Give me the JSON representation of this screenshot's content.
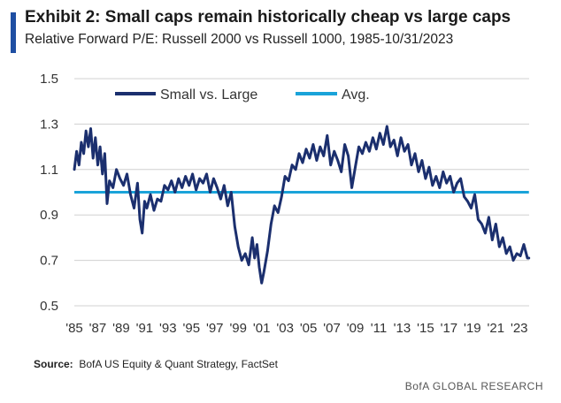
{
  "header": {
    "title": "Exhibit 2: Small caps remain historically cheap vs large caps",
    "subtitle": "Relative Forward P/E: Russell 2000 vs Russell 1000, 1985-10/31/2023"
  },
  "footer": {
    "source_label": "Source:",
    "source_text": "BofA US Equity & Quant Strategy, FactSet",
    "brand": "BofA GLOBAL RESEARCH"
  },
  "colors": {
    "series": "#1b2f6e",
    "avg": "#1aa3d9",
    "grid": "#d0d0d0",
    "accent": "#1f4fa3"
  },
  "chart_data": {
    "type": "line",
    "title": "Exhibit 2: Small caps remain historically cheap vs large caps",
    "subtitle": "Relative Forward P/E: Russell 2000 vs Russell 1000, 1985-10/31/2023",
    "xlabel": "",
    "ylabel": "",
    "xlim": [
      1985,
      2023.85
    ],
    "ylim": [
      0.5,
      1.5
    ],
    "yticks": [
      0.5,
      0.7,
      0.9,
      1.1,
      1.3,
      1.5
    ],
    "ytick_labels": [
      "0.5",
      "0.7",
      "0.9",
      "1.1",
      "1.3",
      "1.5"
    ],
    "xticks": [
      1985,
      1987,
      1989,
      1991,
      1993,
      1995,
      1997,
      1999,
      2001,
      2003,
      2005,
      2007,
      2009,
      2011,
      2013,
      2015,
      2017,
      2019,
      2021,
      2023
    ],
    "xtick_labels": [
      "'85",
      "'87",
      "'89",
      "'91",
      "'93",
      "'95",
      "'97",
      "'99",
      "'01",
      "'03",
      "'05",
      "'07",
      "'09",
      "'11",
      "'13",
      "'15",
      "'17",
      "'19",
      "'21",
      "'23"
    ],
    "grid": "horizontal",
    "legend_position": "top-left",
    "series": [
      {
        "name": "Small vs. Large",
        "x": [
          1985.0,
          1985.2,
          1985.4,
          1985.6,
          1985.8,
          1986.0,
          1986.2,
          1986.4,
          1986.6,
          1986.8,
          1987.0,
          1987.2,
          1987.4,
          1987.6,
          1987.8,
          1988.0,
          1988.3,
          1988.6,
          1988.9,
          1989.2,
          1989.5,
          1989.8,
          1990.1,
          1990.4,
          1990.6,
          1990.8,
          1991.0,
          1991.2,
          1991.5,
          1991.8,
          1992.1,
          1992.4,
          1992.7,
          1993.0,
          1993.3,
          1993.6,
          1993.9,
          1994.2,
          1994.5,
          1994.8,
          1995.1,
          1995.4,
          1995.7,
          1996.0,
          1996.3,
          1996.6,
          1996.9,
          1997.2,
          1997.5,
          1997.8,
          1998.1,
          1998.4,
          1998.7,
          1999.0,
          1999.3,
          1999.6,
          1999.9,
          2000.2,
          2000.4,
          2000.6,
          2000.8,
          2001.0,
          2001.2,
          2001.5,
          2001.8,
          2002.1,
          2002.4,
          2002.7,
          2003.0,
          2003.3,
          2003.6,
          2003.9,
          2004.2,
          2004.5,
          2004.8,
          2005.1,
          2005.4,
          2005.7,
          2006.0,
          2006.3,
          2006.6,
          2006.9,
          2007.2,
          2007.5,
          2007.8,
          2008.1,
          2008.4,
          2008.7,
          2009.0,
          2009.3,
          2009.6,
          2009.9,
          2010.2,
          2010.5,
          2010.8,
          2011.1,
          2011.4,
          2011.7,
          2012.0,
          2012.3,
          2012.6,
          2012.9,
          2013.2,
          2013.5,
          2013.8,
          2014.1,
          2014.4,
          2014.7,
          2015.0,
          2015.3,
          2015.6,
          2015.9,
          2016.2,
          2016.5,
          2016.8,
          2017.1,
          2017.4,
          2017.7,
          2018.0,
          2018.3,
          2018.6,
          2018.9,
          2019.2,
          2019.5,
          2019.8,
          2020.1,
          2020.4,
          2020.7,
          2021.0,
          2021.3,
          2021.6,
          2021.9,
          2022.2,
          2022.5,
          2022.8,
          2023.1,
          2023.4,
          2023.7,
          2023.83
        ],
        "values": [
          1.1,
          1.18,
          1.12,
          1.22,
          1.17,
          1.27,
          1.2,
          1.28,
          1.15,
          1.24,
          1.12,
          1.2,
          1.08,
          1.17,
          0.95,
          1.05,
          1.02,
          1.1,
          1.06,
          1.03,
          1.08,
          0.99,
          0.93,
          1.04,
          0.88,
          0.82,
          0.96,
          0.93,
          0.99,
          0.92,
          0.97,
          0.96,
          1.03,
          1.01,
          1.05,
          1.0,
          1.06,
          1.02,
          1.07,
          1.03,
          1.08,
          1.01,
          1.06,
          1.04,
          1.08,
          1.0,
          1.06,
          1.02,
          0.97,
          1.03,
          0.94,
          1.0,
          0.85,
          0.76,
          0.7,
          0.73,
          0.68,
          0.8,
          0.71,
          0.77,
          0.67,
          0.6,
          0.65,
          0.74,
          0.86,
          0.94,
          0.91,
          0.98,
          1.07,
          1.05,
          1.12,
          1.1,
          1.17,
          1.13,
          1.19,
          1.15,
          1.21,
          1.14,
          1.2,
          1.16,
          1.25,
          1.12,
          1.18,
          1.14,
          1.09,
          1.21,
          1.16,
          1.02,
          1.11,
          1.2,
          1.17,
          1.22,
          1.18,
          1.24,
          1.19,
          1.26,
          1.21,
          1.29,
          1.2,
          1.23,
          1.16,
          1.24,
          1.18,
          1.21,
          1.12,
          1.17,
          1.09,
          1.14,
          1.06,
          1.11,
          1.03,
          1.07,
          1.02,
          1.09,
          1.04,
          1.07,
          1.0,
          1.04,
          1.06,
          0.98,
          0.96,
          0.93,
          0.99,
          0.88,
          0.86,
          0.82,
          0.89,
          0.79,
          0.86,
          0.76,
          0.8,
          0.73,
          0.76,
          0.7,
          0.73,
          0.72,
          0.77,
          0.71,
          0.71
        ]
      },
      {
        "name": "Avg.",
        "x": [
          1985,
          2023.83
        ],
        "values": [
          1.0,
          1.0
        ]
      }
    ]
  }
}
